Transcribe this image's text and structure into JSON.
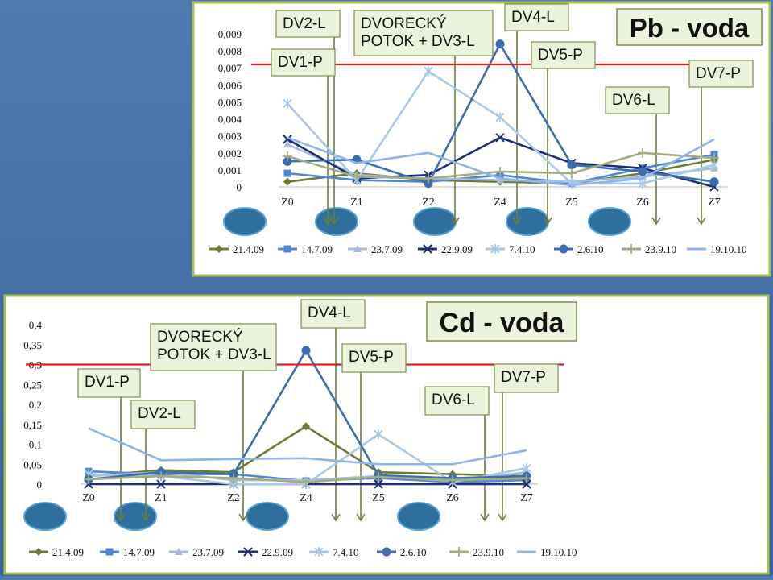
{
  "charts_meta": {
    "threshold_color": "#e0201b",
    "note_fill": "#ecf3dd",
    "note_border": "#7f8f4a",
    "arrow_color": "#6d7e3a",
    "oval_fill": "#2f6f9d",
    "oval_stroke": "#5ba3cf",
    "frame_border": "#a6bf58"
  },
  "chart_data": [
    {
      "type": "line",
      "title": "Pb - voda",
      "x": [
        "Z0",
        "Z1",
        "Z2",
        "Z4",
        "Z5",
        "Z6",
        "Z7"
      ],
      "ylim": [
        0,
        0.009
      ],
      "yticks": [
        "0",
        "0,001",
        "0,002",
        "0,003",
        "0,004",
        "0,005",
        "0,006",
        "0,007",
        "0,008",
        "0,009"
      ],
      "threshold": 0.0072,
      "legend_position": "bottom",
      "series": [
        {
          "name": "21.4.09",
          "color": "#6b7c33",
          "marker": "diamond",
          "values": [
            0.0003,
            0.0008,
            0.0004,
            0.0003,
            0.0002,
            0.0008,
            0.0016
          ]
        },
        {
          "name": "14.7.09",
          "color": "#4f86d6",
          "marker": "square",
          "values": [
            0.0008,
            0.0004,
            0.0003,
            0.0007,
            0.0002,
            0.0011,
            0.0019
          ]
        },
        {
          "name": "23.7.09",
          "color": "#a7bcd9",
          "marker": "triangle",
          "values": [
            0.0025,
            0.0007,
            0.0005,
            0.0004,
            0.0003,
            0.0006,
            0.0011
          ]
        },
        {
          "name": "22.9.09",
          "color": "#1e2f74",
          "marker": "x",
          "values": [
            0.0028,
            0.0005,
            0.0007,
            0.0029,
            0.0014,
            0.0011,
            0.0
          ]
        },
        {
          "name": "7.4.10",
          "color": "#a9c9e6",
          "marker": "star",
          "values": [
            0.0049,
            0.0004,
            0.0068,
            0.0041,
            0.0002,
            0.0002,
            0.0013
          ]
        },
        {
          "name": "2.6.10",
          "color": "#3b6eb0",
          "marker": "circle",
          "values": [
            0.0015,
            0.0016,
            0.0002,
            0.0084,
            0.0013,
            0.0009,
            0.0003
          ]
        },
        {
          "name": "23.9.10",
          "color": "#a4ad80",
          "marker": "plus",
          "values": [
            0.0018,
            0.0006,
            0.0005,
            0.0009,
            0.0008,
            0.002,
            0.0017
          ]
        },
        {
          "name": "19.10.10",
          "color": "#8fb4ea",
          "marker": "none",
          "values": [
            0.0029,
            0.0014,
            0.002,
            0.0005,
            0.0001,
            0.0005,
            0.0028
          ]
        }
      ],
      "annotations": [
        "DV1-P",
        "DV2-L",
        "DVORECKÝ POTOK + DV3-L",
        "DV4-L",
        "DV5-P",
        "DV6-L",
        "DV7-P"
      ]
    },
    {
      "type": "line",
      "title": "Cd - voda",
      "x": [
        "Z0",
        "Z1",
        "Z2",
        "Z4",
        "Z5",
        "Z6",
        "Z7"
      ],
      "ylim": [
        0,
        0.4
      ],
      "yticks": [
        "0",
        "0,05",
        "0,1",
        "0,15",
        "0,2",
        "0,25",
        "0,3",
        "0,35",
        "0,4"
      ],
      "threshold": 0.3,
      "legend_position": "bottom",
      "series": [
        {
          "name": "21.4.09",
          "color": "#6b7c33",
          "marker": "diamond",
          "values": [
            0.02,
            0.035,
            0.03,
            0.145,
            0.03,
            0.025,
            0.02
          ]
        },
        {
          "name": "14.7.09",
          "color": "#4f86d6",
          "marker": "square",
          "values": [
            0.032,
            0.025,
            0.025,
            0.008,
            0.015,
            0.005,
            0.01
          ]
        },
        {
          "name": "23.7.09",
          "color": "#a7bcd9",
          "marker": "triangle",
          "values": [
            0.02,
            0.03,
            0.01,
            0.01,
            0.02,
            0.008,
            0.03
          ]
        },
        {
          "name": "22.9.09",
          "color": "#1e2f74",
          "marker": "x",
          "values": [
            0.0,
            0.0,
            0.0,
            0.0,
            0.0,
            0.0,
            0.0
          ]
        },
        {
          "name": "7.4.10",
          "color": "#a9c9e6",
          "marker": "star",
          "values": [
            0.025,
            0.02,
            0.0,
            0.0,
            0.125,
            0.005,
            0.04
          ]
        },
        {
          "name": "2.6.10",
          "color": "#3b6eb0",
          "marker": "circle",
          "values": [
            0.012,
            0.03,
            0.025,
            0.335,
            0.022,
            0.015,
            0.02
          ]
        },
        {
          "name": "23.9.10",
          "color": "#a4ad80",
          "marker": "plus",
          "values": [
            0.012,
            0.02,
            0.015,
            0.005,
            0.018,
            0.01,
            0.015
          ]
        },
        {
          "name": "19.10.10",
          "color": "#8fb4ea",
          "marker": "none",
          "values": [
            0.14,
            0.06,
            0.063,
            0.065,
            0.05,
            0.05,
            0.085
          ]
        }
      ],
      "annotations": [
        "DV1-P",
        "DV2-L",
        "DVORECKÝ POTOK + DV3-L",
        "DV4-L",
        "DV5-P",
        "DV6-L",
        "DV7-P"
      ]
    }
  ]
}
